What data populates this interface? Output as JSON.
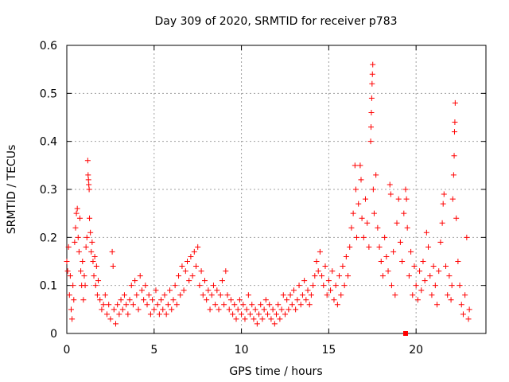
{
  "chart_data": {
    "type": "scatter",
    "title": "Day 309 of 2020, SRMTID for receiver p783",
    "xlabel": "GPS time / hours",
    "ylabel": "SRMTID / TECUs",
    "xlim": [
      0,
      24
    ],
    "ylim": [
      0,
      0.6
    ],
    "x_ticks": [
      "0",
      "5",
      "10",
      "15",
      "20"
    ],
    "y_ticks": [
      "0",
      "0.1",
      "0.2",
      "0.3",
      "0.4",
      "0.5",
      "0.6"
    ],
    "grid": true,
    "legend": "none",
    "marker": "plus",
    "series": [
      {
        "name": "SRMTID",
        "color": "#ff0000",
        "points": [
          [
            0.0,
            0.15
          ],
          [
            0.05,
            0.13
          ],
          [
            0.1,
            0.18
          ],
          [
            0.15,
            0.08
          ],
          [
            0.2,
            0.12
          ],
          [
            0.25,
            0.05
          ],
          [
            0.3,
            0.03
          ],
          [
            0.35,
            0.1
          ],
          [
            0.4,
            0.07
          ],
          [
            0.45,
            0.19
          ],
          [
            0.5,
            0.22
          ],
          [
            0.55,
            0.25
          ],
          [
            0.6,
            0.26
          ],
          [
            0.65,
            0.2
          ],
          [
            0.7,
            0.17
          ],
          [
            0.75,
            0.24
          ],
          [
            0.8,
            0.13
          ],
          [
            0.85,
            0.1
          ],
          [
            0.9,
            0.15
          ],
          [
            0.95,
            0.07
          ],
          [
            1.0,
            0.12
          ],
          [
            1.05,
            0.1
          ],
          [
            1.1,
            0.18
          ],
          [
            1.15,
            0.2
          ],
          [
            1.2,
            0.36
          ],
          [
            1.22,
            0.33
          ],
          [
            1.24,
            0.32
          ],
          [
            1.26,
            0.31
          ],
          [
            1.28,
            0.3
          ],
          [
            1.3,
            0.24
          ],
          [
            1.35,
            0.21
          ],
          [
            1.4,
            0.17
          ],
          [
            1.45,
            0.19
          ],
          [
            1.5,
            0.15
          ],
          [
            1.55,
            0.12
          ],
          [
            1.6,
            0.16
          ],
          [
            1.65,
            0.1
          ],
          [
            1.7,
            0.14
          ],
          [
            1.75,
            0.08
          ],
          [
            1.8,
            0.11
          ],
          [
            1.9,
            0.07
          ],
          [
            2.0,
            0.05
          ],
          [
            2.1,
            0.06
          ],
          [
            2.2,
            0.08
          ],
          [
            2.3,
            0.04
          ],
          [
            2.4,
            0.06
          ],
          [
            2.5,
            0.03
          ],
          [
            2.6,
            0.17
          ],
          [
            2.65,
            0.14
          ],
          [
            2.7,
            0.05
          ],
          [
            2.8,
            0.02
          ],
          [
            2.9,
            0.06
          ],
          [
            3.0,
            0.04
          ],
          [
            3.1,
            0.07
          ],
          [
            3.2,
            0.05
          ],
          [
            3.3,
            0.08
          ],
          [
            3.4,
            0.06
          ],
          [
            3.5,
            0.04
          ],
          [
            3.6,
            0.07
          ],
          [
            3.7,
            0.1
          ],
          [
            3.8,
            0.06
          ],
          [
            3.9,
            0.11
          ],
          [
            4.0,
            0.08
          ],
          [
            4.1,
            0.05
          ],
          [
            4.2,
            0.12
          ],
          [
            4.3,
            0.09
          ],
          [
            4.4,
            0.07
          ],
          [
            4.5,
            0.1
          ],
          [
            4.6,
            0.06
          ],
          [
            4.7,
            0.08
          ],
          [
            4.8,
            0.04
          ],
          [
            4.9,
            0.07
          ],
          [
            5.0,
            0.05
          ],
          [
            5.1,
            0.09
          ],
          [
            5.2,
            0.06
          ],
          [
            5.3,
            0.04
          ],
          [
            5.4,
            0.07
          ],
          [
            5.5,
            0.05
          ],
          [
            5.6,
            0.08
          ],
          [
            5.7,
            0.04
          ],
          [
            5.8,
            0.06
          ],
          [
            5.9,
            0.09
          ],
          [
            6.0,
            0.05
          ],
          [
            6.1,
            0.07
          ],
          [
            6.2,
            0.1
          ],
          [
            6.3,
            0.06
          ],
          [
            6.4,
            0.12
          ],
          [
            6.5,
            0.08
          ],
          [
            6.6,
            0.14
          ],
          [
            6.7,
            0.09
          ],
          [
            6.8,
            0.13
          ],
          [
            6.9,
            0.15
          ],
          [
            7.0,
            0.11
          ],
          [
            7.1,
            0.16
          ],
          [
            7.2,
            0.12
          ],
          [
            7.3,
            0.17
          ],
          [
            7.4,
            0.14
          ],
          [
            7.5,
            0.18
          ],
          [
            7.6,
            0.1
          ],
          [
            7.7,
            0.13
          ],
          [
            7.8,
            0.08
          ],
          [
            7.9,
            0.11
          ],
          [
            8.0,
            0.07
          ],
          [
            8.1,
            0.09
          ],
          [
            8.2,
            0.05
          ],
          [
            8.3,
            0.08
          ],
          [
            8.4,
            0.1
          ],
          [
            8.5,
            0.06
          ],
          [
            8.6,
            0.09
          ],
          [
            8.7,
            0.05
          ],
          [
            8.8,
            0.08
          ],
          [
            8.9,
            0.11
          ],
          [
            9.0,
            0.06
          ],
          [
            9.1,
            0.13
          ],
          [
            9.2,
            0.08
          ],
          [
            9.3,
            0.05
          ],
          [
            9.4,
            0.07
          ],
          [
            9.5,
            0.04
          ],
          [
            9.6,
            0.06
          ],
          [
            9.7,
            0.03
          ],
          [
            9.8,
            0.05
          ],
          [
            9.9,
            0.07
          ],
          [
            10.0,
            0.04
          ],
          [
            10.1,
            0.06
          ],
          [
            10.2,
            0.03
          ],
          [
            10.3,
            0.05
          ],
          [
            10.4,
            0.08
          ],
          [
            10.5,
            0.04
          ],
          [
            10.6,
            0.06
          ],
          [
            10.7,
            0.03
          ],
          [
            10.8,
            0.05
          ],
          [
            10.9,
            0.02
          ],
          [
            11.0,
            0.04
          ],
          [
            11.1,
            0.06
          ],
          [
            11.2,
            0.03
          ],
          [
            11.3,
            0.05
          ],
          [
            11.4,
            0.07
          ],
          [
            11.5,
            0.04
          ],
          [
            11.6,
            0.06
          ],
          [
            11.7,
            0.03
          ],
          [
            11.8,
            0.05
          ],
          [
            11.9,
            0.02
          ],
          [
            12.0,
            0.04
          ],
          [
            12.1,
            0.06
          ],
          [
            12.2,
            0.03
          ],
          [
            12.3,
            0.05
          ],
          [
            12.4,
            0.08
          ],
          [
            12.5,
            0.04
          ],
          [
            12.6,
            0.07
          ],
          [
            12.7,
            0.05
          ],
          [
            12.8,
            0.08
          ],
          [
            12.9,
            0.06
          ],
          [
            13.0,
            0.09
          ],
          [
            13.1,
            0.05
          ],
          [
            13.2,
            0.07
          ],
          [
            13.3,
            0.1
          ],
          [
            13.4,
            0.06
          ],
          [
            13.5,
            0.08
          ],
          [
            13.6,
            0.11
          ],
          [
            13.7,
            0.07
          ],
          [
            13.8,
            0.09
          ],
          [
            13.9,
            0.06
          ],
          [
            14.0,
            0.08
          ],
          [
            14.1,
            0.1
          ],
          [
            14.2,
            0.12
          ],
          [
            14.3,
            0.15
          ],
          [
            14.4,
            0.13
          ],
          [
            14.5,
            0.17
          ],
          [
            14.6,
            0.12
          ],
          [
            14.7,
            0.1
          ],
          [
            14.8,
            0.14
          ],
          [
            14.9,
            0.08
          ],
          [
            15.0,
            0.11
          ],
          [
            15.1,
            0.09
          ],
          [
            15.2,
            0.13
          ],
          [
            15.3,
            0.07
          ],
          [
            15.4,
            0.1
          ],
          [
            15.5,
            0.06
          ],
          [
            15.6,
            0.12
          ],
          [
            15.7,
            0.08
          ],
          [
            15.8,
            0.14
          ],
          [
            15.9,
            0.1
          ],
          [
            16.0,
            0.16
          ],
          [
            16.1,
            0.12
          ],
          [
            16.2,
            0.18
          ],
          [
            16.3,
            0.22
          ],
          [
            16.4,
            0.25
          ],
          [
            16.5,
            0.35
          ],
          [
            16.55,
            0.3
          ],
          [
            16.6,
            0.2
          ],
          [
            16.7,
            0.27
          ],
          [
            16.8,
            0.35
          ],
          [
            16.85,
            0.32
          ],
          [
            16.9,
            0.24
          ],
          [
            17.0,
            0.2
          ],
          [
            17.1,
            0.28
          ],
          [
            17.2,
            0.23
          ],
          [
            17.3,
            0.18
          ],
          [
            17.4,
            0.4
          ],
          [
            17.42,
            0.43
          ],
          [
            17.44,
            0.46
          ],
          [
            17.46,
            0.49
          ],
          [
            17.48,
            0.52
          ],
          [
            17.5,
            0.54
          ],
          [
            17.52,
            0.56
          ],
          [
            17.55,
            0.3
          ],
          [
            17.6,
            0.25
          ],
          [
            17.7,
            0.33
          ],
          [
            17.8,
            0.22
          ],
          [
            17.9,
            0.18
          ],
          [
            18.0,
            0.15
          ],
          [
            18.1,
            0.12
          ],
          [
            18.2,
            0.2
          ],
          [
            18.3,
            0.16
          ],
          [
            18.4,
            0.13
          ],
          [
            18.5,
            0.31
          ],
          [
            18.55,
            0.29
          ],
          [
            18.6,
            0.1
          ],
          [
            18.7,
            0.17
          ],
          [
            18.8,
            0.08
          ],
          [
            18.9,
            0.23
          ],
          [
            19.0,
            0.28
          ],
          [
            19.1,
            0.19
          ],
          [
            19.2,
            0.15
          ],
          [
            19.3,
            0.25
          ],
          [
            19.4,
            0.3
          ],
          [
            19.45,
            0.28
          ],
          [
            19.5,
            0.22
          ],
          [
            19.6,
            0.12
          ],
          [
            19.7,
            0.17
          ],
          [
            19.8,
            0.08
          ],
          [
            19.9,
            0.14
          ],
          [
            20.0,
            0.1
          ],
          [
            20.1,
            0.07
          ],
          [
            20.2,
            0.13
          ],
          [
            20.3,
            0.09
          ],
          [
            20.4,
            0.15
          ],
          [
            20.5,
            0.11
          ],
          [
            20.6,
            0.21
          ],
          [
            20.7,
            0.18
          ],
          [
            20.8,
            0.12
          ],
          [
            20.9,
            0.08
          ],
          [
            21.0,
            0.14
          ],
          [
            21.1,
            0.1
          ],
          [
            21.2,
            0.06
          ],
          [
            21.3,
            0.13
          ],
          [
            21.4,
            0.19
          ],
          [
            21.5,
            0.23
          ],
          [
            21.55,
            0.27
          ],
          [
            21.6,
            0.29
          ],
          [
            21.7,
            0.14
          ],
          [
            21.8,
            0.08
          ],
          [
            21.9,
            0.12
          ],
          [
            22.0,
            0.07
          ],
          [
            22.05,
            0.1
          ],
          [
            22.1,
            0.28
          ],
          [
            22.15,
            0.33
          ],
          [
            22.18,
            0.37
          ],
          [
            22.2,
            0.42
          ],
          [
            22.22,
            0.44
          ],
          [
            22.24,
            0.48
          ],
          [
            22.3,
            0.24
          ],
          [
            22.4,
            0.15
          ],
          [
            22.5,
            0.1
          ],
          [
            22.6,
            0.06
          ],
          [
            22.7,
            0.04
          ],
          [
            22.8,
            0.08
          ],
          [
            22.9,
            0.2
          ],
          [
            23.0,
            0.03
          ],
          [
            23.05,
            0.05
          ]
        ]
      }
    ],
    "extra_marker": {
      "x": 19.4,
      "y": 0,
      "shape": "square",
      "color": "#ff0000"
    }
  }
}
